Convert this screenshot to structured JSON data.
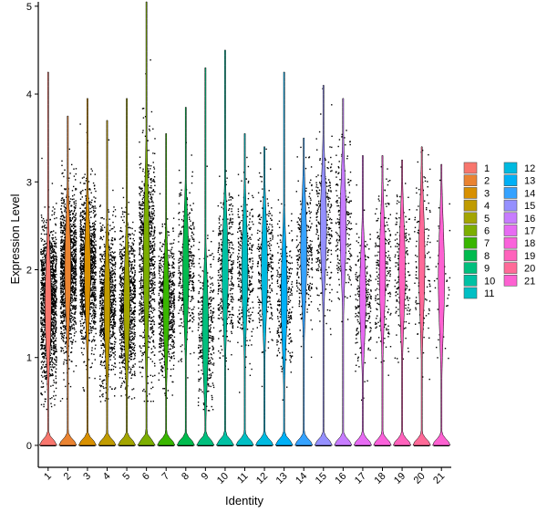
{
  "chart_data": {
    "type": "violin",
    "xlabel": "Identity",
    "ylabel": "Expression Level",
    "ylim": [
      -0.25,
      5.05
    ],
    "yticks": [
      0,
      1,
      2,
      3,
      4,
      5
    ],
    "categories": [
      "1",
      "2",
      "3",
      "4",
      "5",
      "6",
      "7",
      "8",
      "9",
      "10",
      "11",
      "12",
      "13",
      "14",
      "15",
      "16",
      "17",
      "18",
      "19",
      "20",
      "21"
    ],
    "colors": [
      "#F8766D",
      "#EA8331",
      "#D89000",
      "#C09B00",
      "#A3A500",
      "#7CAE00",
      "#39B600",
      "#00BB4E",
      "#00BF7D",
      "#00C1A3",
      "#00BFC4",
      "#00BAE0",
      "#00B0F6",
      "#35A2FF",
      "#9590FF",
      "#C77CFF",
      "#E76BF3",
      "#FA62DB",
      "#FF62BC",
      "#FF6A98",
      "#FD61D1"
    ],
    "series": [
      {
        "name": "1",
        "zero_peak": 0.22,
        "center": 1.6,
        "spread": 0.55,
        "max": 4.25,
        "min_nonzero": 0.4,
        "points": 1400
      },
      {
        "name": "2",
        "zero_peak": 0.22,
        "center": 2.0,
        "spread": 0.55,
        "max": 3.75,
        "min_nonzero": 0.5,
        "points": 1300
      },
      {
        "name": "3",
        "zero_peak": 0.25,
        "center": 2.0,
        "spread": 0.55,
        "max": 3.95,
        "min_nonzero": 0.5,
        "points": 1200
      },
      {
        "name": "4",
        "zero_peak": 0.2,
        "center": 1.6,
        "spread": 0.55,
        "max": 3.7,
        "min_nonzero": 0.5,
        "points": 900
      },
      {
        "name": "5",
        "zero_peak": 0.2,
        "center": 1.6,
        "spread": 0.55,
        "max": 3.95,
        "min_nonzero": 0.5,
        "points": 900
      },
      {
        "name": "6",
        "zero_peak": 0.2,
        "center": 2.1,
        "spread": 0.75,
        "max": 5.05,
        "min_nonzero": 0.5,
        "points": 900
      },
      {
        "name": "7",
        "zero_peak": 0.15,
        "center": 1.6,
        "spread": 0.5,
        "max": 3.55,
        "min_nonzero": 0.5,
        "points": 700
      },
      {
        "name": "8",
        "zero_peak": 0.15,
        "center": 2.0,
        "spread": 0.55,
        "max": 3.85,
        "min_nonzero": 0.5,
        "points": 400
      },
      {
        "name": "9",
        "zero_peak": 0.15,
        "center": 1.3,
        "spread": 0.55,
        "max": 4.3,
        "min_nonzero": 0.4,
        "points": 350
      },
      {
        "name": "10",
        "zero_peak": 0.15,
        "center": 2.0,
        "spread": 0.55,
        "max": 4.5,
        "min_nonzero": 0.5,
        "points": 400
      },
      {
        "name": "11",
        "zero_peak": 0.15,
        "center": 2.0,
        "spread": 0.55,
        "max": 3.55,
        "min_nonzero": 0.5,
        "points": 350
      },
      {
        "name": "12",
        "zero_peak": 0.15,
        "center": 2.0,
        "spread": 0.55,
        "max": 3.4,
        "min_nonzero": 0.5,
        "points": 300
      },
      {
        "name": "13",
        "zero_peak": 0.15,
        "center": 1.7,
        "spread": 0.55,
        "max": 4.25,
        "min_nonzero": 0.5,
        "points": 300
      },
      {
        "name": "14",
        "zero_peak": 0.15,
        "center": 2.2,
        "spread": 0.55,
        "max": 3.5,
        "min_nonzero": 0.5,
        "points": 300
      },
      {
        "name": "15",
        "zero_peak": 0.15,
        "center": 2.5,
        "spread": 0.55,
        "max": 4.1,
        "min_nonzero": 0.6,
        "points": 300
      },
      {
        "name": "16",
        "zero_peak": 0.15,
        "center": 2.5,
        "spread": 0.55,
        "max": 3.95,
        "min_nonzero": 0.6,
        "points": 250
      },
      {
        "name": "17",
        "zero_peak": 0.1,
        "center": 1.7,
        "spread": 0.5,
        "max": 3.3,
        "min_nonzero": 0.5,
        "points": 250
      },
      {
        "name": "18",
        "zero_peak": 0.1,
        "center": 2.0,
        "spread": 0.55,
        "max": 3.3,
        "min_nonzero": 0.5,
        "points": 250
      },
      {
        "name": "19",
        "zero_peak": 0.1,
        "center": 2.0,
        "spread": 0.55,
        "max": 3.25,
        "min_nonzero": 0.5,
        "points": 200
      },
      {
        "name": "20",
        "zero_peak": 0.15,
        "center": 2.1,
        "spread": 0.6,
        "max": 3.4,
        "min_nonzero": 0.5,
        "points": 150
      },
      {
        "name": "21",
        "zero_peak": 0.1,
        "center": 1.9,
        "spread": 0.6,
        "max": 3.2,
        "min_nonzero": 0.5,
        "points": 40
      }
    ],
    "legend": {
      "position": "right",
      "columns": 2
    },
    "grid": false
  }
}
